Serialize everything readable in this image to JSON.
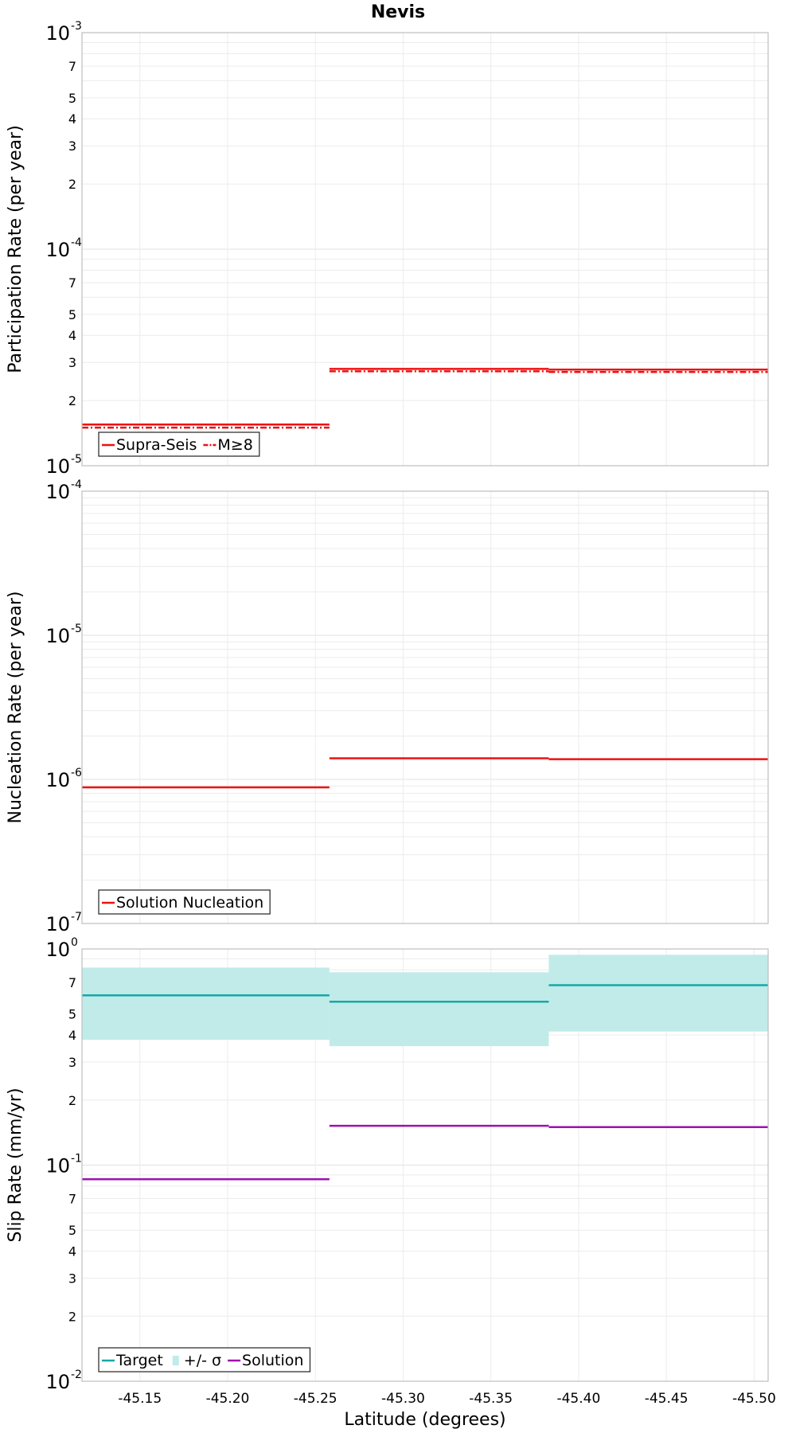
{
  "figure_title": "Nevis",
  "xlabel": "Latitude (degrees)",
  "x_ticks": [
    "-45.15",
    "-45.20",
    "-45.25",
    "-45.30",
    "-45.35",
    "-45.40",
    "-45.45",
    "-45.50"
  ],
  "colors": {
    "red": "#ee1111",
    "teal": "#15a8a8",
    "band": "#c0ebe9",
    "magenta": "#a010b0",
    "grid": "#ececec",
    "frame": "#bdbdbd"
  },
  "chart_data": [
    {
      "type": "line",
      "ylabel": "Participation Rate (per year)",
      "yscale": "log",
      "ylim": [
        1e-05,
        0.001
      ],
      "xlim": [
        -45.117,
        -45.508
      ],
      "x_reversed": true,
      "legend_position": "bottom-left",
      "y_major_ticks": [
        {
          "mantissa": "10",
          "exponent": "-5"
        },
        {
          "mantissa": "10",
          "exponent": "-4"
        },
        {
          "mantissa": "10",
          "exponent": "-3"
        }
      ],
      "y_minor_labels": [
        "2",
        "3",
        "4",
        "5",
        "7"
      ],
      "bin_edges": [
        -45.117,
        -45.258,
        -45.383,
        -45.508
      ],
      "series": [
        {
          "name": "Supra-Seis",
          "style": "solid",
          "color": "red",
          "values": [
            1.55e-05,
            2.8e-05,
            2.78e-05
          ]
        },
        {
          "name": "M≥8",
          "style": "dashdot",
          "color": "red",
          "values": [
            1.5e-05,
            2.73e-05,
            2.71e-05
          ]
        }
      ]
    },
    {
      "type": "line",
      "ylabel": "Nucleation Rate (per year)",
      "yscale": "log",
      "ylim": [
        1e-07,
        0.0001
      ],
      "xlim": [
        -45.117,
        -45.508
      ],
      "x_reversed": true,
      "legend_position": "bottom-left",
      "y_major_ticks": [
        {
          "mantissa": "10",
          "exponent": "-7"
        },
        {
          "mantissa": "10",
          "exponent": "-6"
        },
        {
          "mantissa": "10",
          "exponent": "-5"
        },
        {
          "mantissa": "10",
          "exponent": "-4"
        }
      ],
      "y_minor_labels": [],
      "bin_edges": [
        -45.117,
        -45.258,
        -45.383,
        -45.508
      ],
      "series": [
        {
          "name": "Solution Nucleation",
          "style": "solid",
          "color": "red",
          "values": [
            8.8e-07,
            1.4e-06,
            1.38e-06
          ]
        }
      ]
    },
    {
      "type": "line",
      "ylabel": "Slip Rate (mm/yr)",
      "yscale": "log",
      "ylim": [
        0.01,
        1
      ],
      "xlim": [
        -45.117,
        -45.508
      ],
      "x_reversed": true,
      "legend_position": "bottom-left",
      "y_major_ticks": [
        {
          "mantissa": "10",
          "exponent": "-2"
        },
        {
          "mantissa": "10",
          "exponent": "-1"
        },
        {
          "mantissa": "10",
          "exponent": "0"
        }
      ],
      "y_minor_labels": [
        "2",
        "3",
        "4",
        "5",
        "7"
      ],
      "bin_edges": [
        -45.117,
        -45.258,
        -45.383,
        -45.508
      ],
      "band": {
        "name": "+/- σ",
        "color": "band",
        "lower": [
          0.38,
          0.355,
          0.415
        ],
        "upper": [
          0.82,
          0.78,
          0.94
        ]
      },
      "series": [
        {
          "name": "Target",
          "style": "solid",
          "color": "teal",
          "values": [
            0.61,
            0.57,
            0.68
          ]
        },
        {
          "name": "Solution",
          "style": "solid",
          "color": "magenta",
          "values": [
            0.086,
            0.152,
            0.15
          ]
        }
      ]
    }
  ]
}
